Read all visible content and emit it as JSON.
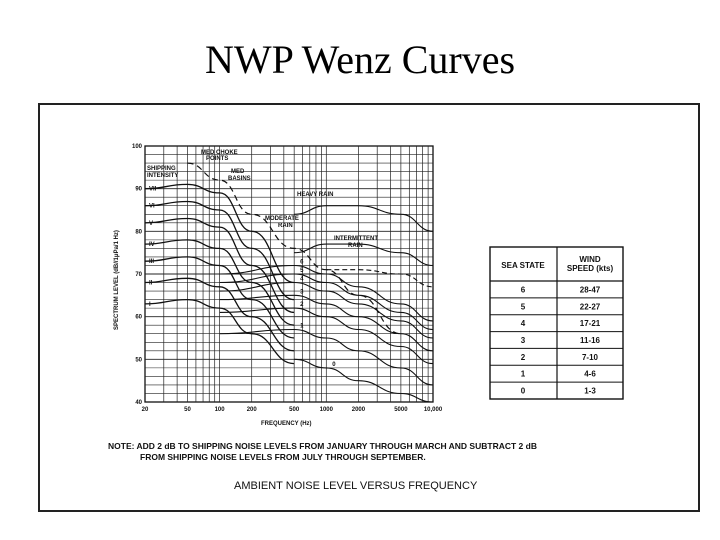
{
  "slide": {
    "title": "NWP Wenz Curves"
  },
  "chart_data": {
    "type": "line",
    "title": "AMBIENT NOISE LEVEL VERSUS FREQUENCY",
    "xlabel": "FREQUENCY (Hz)",
    "ylabel": "SPECTRUM LEVEL (dB//1μPa/1 Hz)",
    "xscale": "log",
    "xlim": [
      20,
      10000
    ],
    "ylim": [
      40,
      100
    ],
    "grid": true,
    "x_ticks": [
      "20",
      "50",
      "100",
      "200",
      "500",
      "1000",
      "2000",
      "5000",
      "10,000"
    ],
    "y_ticks": [
      "40",
      "50",
      "60",
      "70",
      "80",
      "90",
      "100"
    ],
    "shipping_curves": [
      {
        "name": "VII",
        "x": [
          20,
          50,
          100,
          200,
          500
        ],
        "y": [
          90,
          91,
          89,
          80,
          68
        ]
      },
      {
        "name": "VI",
        "x": [
          20,
          50,
          100,
          200,
          500
        ],
        "y": [
          86,
          87,
          85,
          76,
          64
        ]
      },
      {
        "name": "V",
        "x": [
          20,
          50,
          100,
          200,
          500
        ],
        "y": [
          82,
          83,
          81,
          72,
          61
        ]
      },
      {
        "name": "IV",
        "x": [
          20,
          50,
          100,
          200,
          500
        ],
        "y": [
          77,
          78,
          76,
          68,
          58
        ]
      },
      {
        "name": "III",
        "x": [
          20,
          50,
          100,
          200,
          500
        ],
        "y": [
          73,
          74,
          72,
          64,
          55
        ]
      },
      {
        "name": "II",
        "x": [
          20,
          50,
          100,
          200,
          500
        ],
        "y": [
          68,
          69,
          67,
          60,
          52
        ]
      },
      {
        "name": "I",
        "x": [
          20,
          50,
          100,
          200,
          500
        ],
        "y": [
          63,
          64,
          62,
          56,
          49
        ]
      }
    ],
    "sea_state_curves": [
      {
        "name": "6",
        "x": [
          100,
          500,
          1000,
          2000,
          5000,
          10000
        ],
        "y": [
          70,
          72,
          70,
          67,
          63,
          59
        ]
      },
      {
        "name": "5",
        "x": [
          100,
          500,
          1000,
          2000,
          5000,
          10000
        ],
        "y": [
          68,
          70,
          68,
          65,
          61,
          57
        ]
      },
      {
        "name": "4",
        "x": [
          100,
          500,
          1000,
          2000,
          5000,
          10000
        ],
        "y": [
          66,
          68,
          66,
          63,
          59,
          55
        ]
      },
      {
        "name": "3",
        "x": [
          100,
          500,
          1000,
          2000,
          5000,
          10000
        ],
        "y": [
          64,
          65,
          63,
          60,
          56,
          52
        ]
      },
      {
        "name": "2",
        "x": [
          100,
          500,
          1000,
          2000,
          5000,
          10000
        ],
        "y": [
          61,
          62,
          60,
          57,
          53,
          49
        ]
      },
      {
        "name": "1",
        "x": [
          100,
          500,
          1000,
          2000,
          5000,
          10000
        ],
        "y": [
          56,
          57,
          55,
          52,
          48,
          44
        ]
      },
      {
        "name": "0",
        "x": [
          500,
          1000,
          2000,
          5000,
          10000
        ],
        "y": [
          50,
          48,
          45,
          42,
          40
        ]
      }
    ],
    "rain_curves": [
      {
        "name": "HEAVY RAIN",
        "x": [
          500,
          1000,
          2000,
          5000,
          10000
        ],
        "y": [
          84,
          86,
          86,
          84,
          80
        ]
      },
      {
        "name": "MODERATE RAIN",
        "x": [
          500,
          1000,
          2000,
          5000,
          10000
        ],
        "y": [
          75,
          77,
          77,
          75,
          72
        ]
      },
      {
        "name": "INTERMITTENT RAIN",
        "x": [
          1000,
          2000,
          5000,
          10000
        ],
        "y": [
          71,
          71,
          70,
          67
        ]
      }
    ],
    "annotations": [
      "SHIPPING INTENSITY",
      "MED CHOKE POINTS",
      "MED BASINS",
      "HEAVY RAIN",
      "MODERATE RAIN",
      "INTERMITTENT RAIN"
    ]
  },
  "sea_state_table": {
    "headers": [
      "SEA STATE",
      "WIND SPEED (kts)"
    ],
    "rows": [
      [
        "6",
        "28-47"
      ],
      [
        "5",
        "22-27"
      ],
      [
        "4",
        "17-21"
      ],
      [
        "3",
        "11-16"
      ],
      [
        "2",
        "7-10"
      ],
      [
        "1",
        "4-6"
      ],
      [
        "0",
        "1-3"
      ]
    ]
  },
  "note": {
    "line1": "NOTE: ADD 2 dB TO SHIPPING NOISE LEVELS FROM JANUARY THROUGH MARCH AND SUBTRACT 2 dB",
    "line2": "FROM SHIPPING NOISE LEVELS FROM JULY THROUGH SEPTEMBER."
  },
  "caption": "AMBIENT NOISE LEVEL VERSUS FREQUENCY",
  "colors": {
    "ink": "#111111",
    "background": "#ffffff"
  }
}
